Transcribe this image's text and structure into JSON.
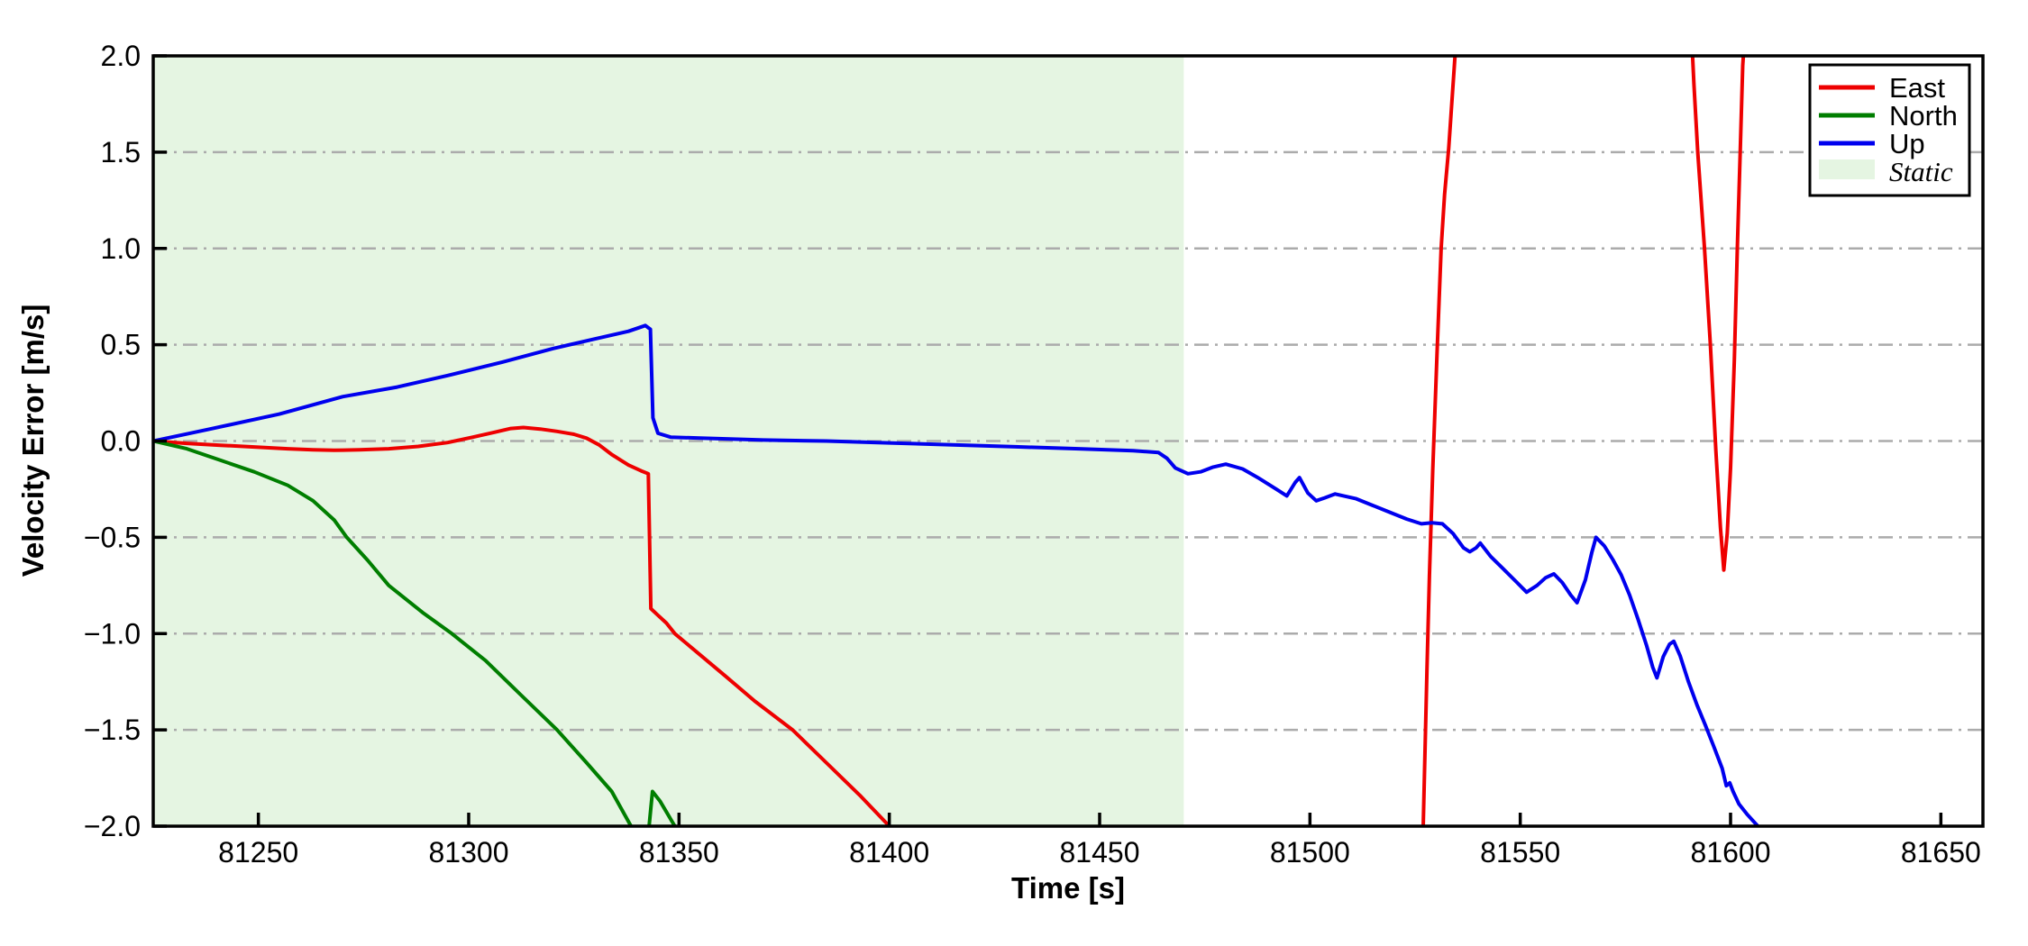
{
  "figure": {
    "background": "#ffffff"
  },
  "chart_data": {
    "type": "line",
    "xlabel": "Time [s]",
    "ylabel": "Velocity Error [m/s]",
    "xlim": [
      81225,
      81660
    ],
    "ylim": [
      -2.0,
      2.0
    ],
    "x_ticks": [
      81250,
      81300,
      81350,
      81400,
      81450,
      81500,
      81550,
      81600,
      81650
    ],
    "y_ticks": [
      2.0,
      1.5,
      1.0,
      0.5,
      0.0,
      -0.5,
      -1.0,
      -1.5,
      -2.0
    ],
    "grid": {
      "axis": "y",
      "style": "dash-dot",
      "color": "#ababab"
    },
    "legend": {
      "position": "upper-right",
      "entries": [
        "East",
        "North",
        "Up",
        "Static"
      ]
    },
    "static_region": {
      "label": "Static",
      "x_start": 81225,
      "x_end": 81470,
      "fill": "#e5f5e2"
    },
    "series": [
      {
        "name": "East",
        "color": "#ee0000",
        "segments": [
          [
            [
              81225,
              0.0
            ],
            [
              81233,
              -0.012
            ],
            [
              81241,
              -0.022
            ],
            [
              81249,
              -0.031
            ],
            [
              81257,
              -0.04
            ],
            [
              81263,
              -0.046
            ],
            [
              81268,
              -0.048
            ],
            [
              81274,
              -0.046
            ],
            [
              81281,
              -0.04
            ],
            [
              81288,
              -0.028
            ],
            [
              81295,
              -0.008
            ],
            [
              81301,
              0.02
            ],
            [
              81306,
              0.045
            ],
            [
              81310,
              0.065
            ],
            [
              81313,
              0.07
            ],
            [
              81317,
              0.062
            ],
            [
              81321,
              0.05
            ],
            [
              81325,
              0.035
            ],
            [
              81328,
              0.015
            ],
            [
              81331,
              -0.02
            ],
            [
              81334,
              -0.07
            ],
            [
              81338,
              -0.125
            ],
            [
              81341,
              -0.155
            ],
            [
              81342.7,
              -0.17
            ],
            [
              81343.3,
              -0.87
            ],
            [
              81345,
              -0.905
            ],
            [
              81347,
              -0.945
            ],
            [
              81349,
              -1.0
            ],
            [
              81355,
              -1.11
            ],
            [
              81361,
              -1.22
            ],
            [
              81368,
              -1.35
            ],
            [
              81377,
              -1.5
            ],
            [
              81385,
              -1.67
            ],
            [
              81393,
              -1.84
            ],
            [
              81400,
              -2.0
            ],
            [
              81402,
              -2.12
            ]
          ],
          [
            [
              81526.8,
              -2.12
            ],
            [
              81527.2,
              -1.75
            ],
            [
              81527.8,
              -1.2
            ],
            [
              81528.4,
              -0.7
            ],
            [
              81529.2,
              -0.15
            ],
            [
              81530.2,
              0.45
            ],
            [
              81531.2,
              1.0
            ],
            [
              81532,
              1.28
            ],
            [
              81533,
              1.52
            ],
            [
              81534.5,
              2.0
            ],
            [
              81535.2,
              2.12
            ]
          ],
          [
            [
              81590.7,
              2.12
            ],
            [
              81591.3,
              1.85
            ],
            [
              81592.2,
              1.5
            ],
            [
              81593.8,
              1.0
            ],
            [
              81595.2,
              0.5
            ],
            [
              81596.5,
              -0.05
            ],
            [
              81597.6,
              -0.45
            ],
            [
              81598.4,
              -0.67
            ],
            [
              81599.2,
              -0.48
            ],
            [
              81600,
              -0.14
            ],
            [
              81600.9,
              0.42
            ],
            [
              81601.6,
              1.0
            ],
            [
              81602.3,
              1.5
            ],
            [
              81602.9,
              1.95
            ],
            [
              81603.4,
              2.12
            ]
          ]
        ]
      },
      {
        "name": "North",
        "color": "#007e00",
        "segments": [
          [
            [
              81225,
              0.0
            ],
            [
              81233,
              -0.04
            ],
            [
              81241,
              -0.1
            ],
            [
              81249,
              -0.16
            ],
            [
              81257,
              -0.23
            ],
            [
              81263,
              -0.31
            ],
            [
              81268,
              -0.41
            ],
            [
              81271,
              -0.5
            ],
            [
              81276,
              -0.62
            ],
            [
              81281,
              -0.75
            ],
            [
              81289,
              -0.89
            ],
            [
              81296,
              -1.0
            ],
            [
              81304,
              -1.14
            ],
            [
              81312,
              -1.31
            ],
            [
              81321,
              -1.5
            ],
            [
              81328,
              -1.67
            ],
            [
              81334,
              -1.82
            ],
            [
              81338.6,
              -2.0
            ],
            [
              81342.7,
              -2.04
            ],
            [
              81343.7,
              -1.82
            ],
            [
              81345.5,
              -1.87
            ],
            [
              81349,
              -2.0
            ],
            [
              81351,
              -2.14
            ]
          ]
        ]
      },
      {
        "name": "Up",
        "color": "#0000ee",
        "segments": [
          [
            [
              81225,
              0.0
            ],
            [
              81238,
              0.06
            ],
            [
              81255,
              0.14
            ],
            [
              81270,
              0.23
            ],
            [
              81283,
              0.28
            ],
            [
              81295,
              0.34
            ],
            [
              81308,
              0.41
            ],
            [
              81320,
              0.48
            ],
            [
              81330,
              0.53
            ],
            [
              81338,
              0.57
            ],
            [
              81342,
              0.6
            ],
            [
              81343.2,
              0.58
            ],
            [
              81343.8,
              0.12
            ],
            [
              81345,
              0.04
            ],
            [
              81348,
              0.02
            ],
            [
              81355,
              0.015
            ],
            [
              81370,
              0.005
            ],
            [
              81385,
              0.0
            ],
            [
              81400,
              -0.01
            ],
            [
              81415,
              -0.02
            ],
            [
              81430,
              -0.03
            ],
            [
              81445,
              -0.04
            ],
            [
              81458,
              -0.05
            ],
            [
              81464,
              -0.06
            ],
            [
              81466,
              -0.09
            ],
            [
              81468,
              -0.14
            ],
            [
              81471,
              -0.17
            ],
            [
              81474,
              -0.16
            ],
            [
              81477,
              -0.135
            ],
            [
              81480,
              -0.12
            ],
            [
              81484,
              -0.145
            ],
            [
              81488,
              -0.195
            ],
            [
              81492,
              -0.25
            ],
            [
              81494.5,
              -0.285
            ],
            [
              81496.5,
              -0.215
            ],
            [
              81497.5,
              -0.19
            ],
            [
              81499.5,
              -0.27
            ],
            [
              81501.5,
              -0.31
            ],
            [
              81503.5,
              -0.295
            ],
            [
              81506,
              -0.275
            ],
            [
              81508,
              -0.285
            ],
            [
              81511,
              -0.3
            ],
            [
              81515,
              -0.335
            ],
            [
              81519,
              -0.37
            ],
            [
              81523,
              -0.405
            ],
            [
              81526.5,
              -0.43
            ],
            [
              81529,
              -0.425
            ],
            [
              81531.5,
              -0.43
            ],
            [
              81534,
              -0.48
            ],
            [
              81536.5,
              -0.555
            ],
            [
              81538,
              -0.575
            ],
            [
              81539.5,
              -0.555
            ],
            [
              81540.5,
              -0.53
            ],
            [
              81543,
              -0.6
            ],
            [
              81546,
              -0.665
            ],
            [
              81549,
              -0.73
            ],
            [
              81551.5,
              -0.785
            ],
            [
              81554,
              -0.75
            ],
            [
              81556,
              -0.71
            ],
            [
              81558,
              -0.69
            ],
            [
              81560,
              -0.735
            ],
            [
              81562,
              -0.8
            ],
            [
              81563.5,
              -0.84
            ],
            [
              81565.5,
              -0.72
            ],
            [
              81567,
              -0.58
            ],
            [
              81568,
              -0.5
            ],
            [
              81570,
              -0.545
            ],
            [
              81572,
              -0.615
            ],
            [
              81574,
              -0.695
            ],
            [
              81576,
              -0.8
            ],
            [
              81578,
              -0.925
            ],
            [
              81580,
              -1.06
            ],
            [
              81581.5,
              -1.175
            ],
            [
              81582.5,
              -1.23
            ],
            [
              81584,
              -1.12
            ],
            [
              81585.5,
              -1.055
            ],
            [
              81586.5,
              -1.04
            ],
            [
              81588,
              -1.115
            ],
            [
              81590,
              -1.25
            ],
            [
              81592,
              -1.37
            ],
            [
              81594,
              -1.475
            ],
            [
              81596,
              -1.585
            ],
            [
              81598,
              -1.7
            ],
            [
              81599,
              -1.79
            ],
            [
              81599.8,
              -1.775
            ],
            [
              81600.6,
              -1.82
            ],
            [
              81602,
              -1.885
            ],
            [
              81604,
              -1.94
            ],
            [
              81606.5,
              -2.0
            ],
            [
              81608.5,
              -2.12
            ]
          ]
        ]
      }
    ]
  }
}
